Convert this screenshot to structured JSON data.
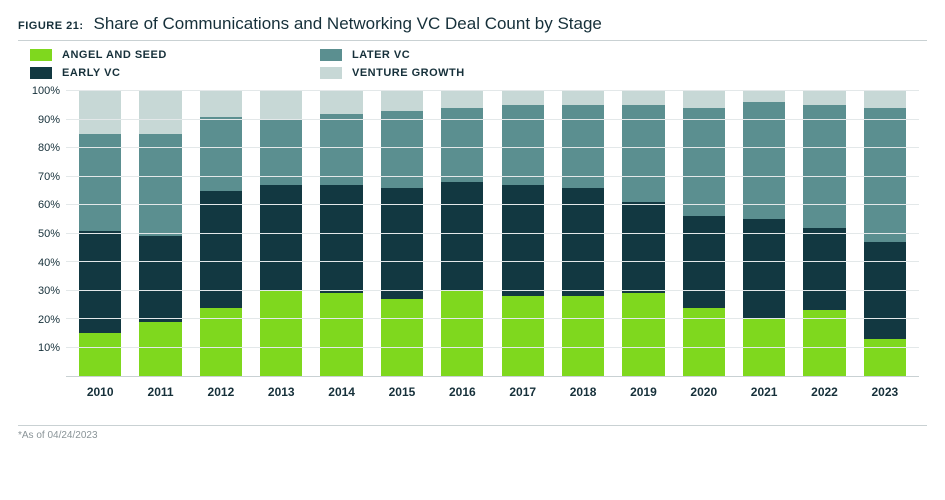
{
  "figure": {
    "number_label": "FIGURE 21:",
    "title": "Share of Communications and Networking VC Deal Count by Stage",
    "footnote": "*As of 04/24/2023"
  },
  "chart": {
    "type": "stacked-bar-100",
    "background_color": "#ffffff",
    "grid_color": "#e3e8e9",
    "axis_rule_color": "#c9d1d3",
    "label_fontsize": 11,
    "category_fontsize": 12,
    "y": {
      "min": 0,
      "max": 100,
      "tick_step": 10,
      "suffix": "%"
    },
    "series": [
      {
        "key": "angel_seed",
        "label": "ANGEL AND SEED",
        "color": "#7fd81e"
      },
      {
        "key": "early_vc",
        "label": "EARLY VC",
        "color": "#123841"
      },
      {
        "key": "later_vc",
        "label": "LATER VC",
        "color": "#5b8f90"
      },
      {
        "key": "venture_growth",
        "label": "VENTURE GROWTH",
        "color": "#c7d8d6"
      }
    ],
    "legend_order": [
      "angel_seed",
      "later_vc",
      "early_vc",
      "venture_growth"
    ],
    "categories": [
      "2010",
      "2011",
      "2012",
      "2013",
      "2014",
      "2015",
      "2016",
      "2017",
      "2018",
      "2019",
      "2020",
      "2021",
      "2022",
      "2023"
    ],
    "data": [
      {
        "angel_seed": 15,
        "early_vc": 36,
        "later_vc": 34,
        "venture_growth": 15
      },
      {
        "angel_seed": 19,
        "early_vc": 30,
        "later_vc": 36,
        "venture_growth": 15
      },
      {
        "angel_seed": 24,
        "early_vc": 41,
        "later_vc": 26,
        "venture_growth": 9
      },
      {
        "angel_seed": 30,
        "early_vc": 37,
        "later_vc": 23,
        "venture_growth": 10
      },
      {
        "angel_seed": 29,
        "early_vc": 38,
        "later_vc": 25,
        "venture_growth": 8
      },
      {
        "angel_seed": 27,
        "early_vc": 39,
        "later_vc": 27,
        "venture_growth": 7
      },
      {
        "angel_seed": 30,
        "early_vc": 38,
        "later_vc": 26,
        "venture_growth": 6
      },
      {
        "angel_seed": 28,
        "early_vc": 39,
        "later_vc": 28,
        "venture_growth": 5
      },
      {
        "angel_seed": 28,
        "early_vc": 38,
        "later_vc": 29,
        "venture_growth": 5
      },
      {
        "angel_seed": 29,
        "early_vc": 32,
        "later_vc": 34,
        "venture_growth": 5
      },
      {
        "angel_seed": 24,
        "early_vc": 32,
        "later_vc": 38,
        "venture_growth": 6
      },
      {
        "angel_seed": 20,
        "early_vc": 35,
        "later_vc": 41,
        "venture_growth": 4
      },
      {
        "angel_seed": 23,
        "early_vc": 29,
        "later_vc": 43,
        "venture_growth": 5
      },
      {
        "angel_seed": 13,
        "early_vc": 34,
        "later_vc": 47,
        "venture_growth": 6
      }
    ]
  }
}
